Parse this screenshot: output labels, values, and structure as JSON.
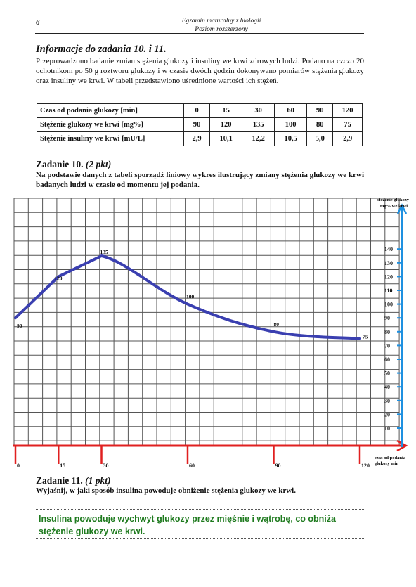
{
  "header": {
    "page_number": "6",
    "running_title_1": "Egzamin maturalny z biologii",
    "running_title_2": "Poziom rozszerzony"
  },
  "info": {
    "title": "Informacje do zadania 10. i 11.",
    "text": "Przeprowadzono badanie zmian stężenia glukozy i insuliny we krwi zdrowych ludzi. Podano na czczo 20 ochotnikom po 50 g roztworu glukozy i w czasie dwóch godzin dokonywano pomiarów stężenia glukozy oraz insuliny we krwi. W tabeli przedstawiono uśrednione wartości ich stężeń."
  },
  "table": {
    "rows": [
      {
        "label": "Czas od podania glukozy [min]",
        "values": [
          "0",
          "15",
          "30",
          "60",
          "90",
          "120"
        ]
      },
      {
        "label": "Stężenie glukozy we krwi [mg%]",
        "values": [
          "90",
          "120",
          "135",
          "100",
          "80",
          "75"
        ]
      },
      {
        "label": "Stężenie insuliny we krwi [mU/L]",
        "values": [
          "2,9",
          "10,1",
          "12,2",
          "10,5",
          "5,0",
          "2,9"
        ]
      }
    ]
  },
  "task10": {
    "title_main": "Zadanie 10.",
    "title_points": "(2 pkt)",
    "text": "Na podstawie danych z tabeli sporządź liniowy wykres ilustrujący zmiany stężenia glukozy we krwi badanych ludzi w czasie od momentu jej podania."
  },
  "task11": {
    "title_main": "Zadanie 11.",
    "title_points": "(1 pkt)",
    "text": "Wyjaśnij, w jaki sposób insulina powoduje obniżenie stężenia glukozy we krwi.",
    "answer": "Insulina powoduje wychwyt glukozy przez mięśnie i wątrobę, co obniża stężenie glukozy we krwi."
  },
  "chart_data": {
    "type": "line",
    "ylabel_line1": "stężenie glukozy",
    "ylabel_line2": "mg% we krwi",
    "xlabel_line1": "czas od podania",
    "xlabel_line2": "glukozy   min",
    "x": [
      0,
      15,
      30,
      60,
      90,
      120
    ],
    "y": [
      90,
      120,
      135,
      100,
      80,
      75
    ],
    "point_labels": [
      "90",
      "120",
      "135",
      "100",
      "80",
      "75"
    ],
    "x_ticks": [
      "0",
      "15",
      "30",
      "60",
      "90",
      "120"
    ],
    "y_ticks": [
      "10",
      "20",
      "30",
      "40",
      "50",
      "60",
      "70",
      "80",
      "90",
      "100",
      "110",
      "120",
      "130",
      "140"
    ],
    "xlim": [
      0,
      120
    ],
    "ylim": [
      0,
      140
    ],
    "grid": true,
    "colors": {
      "line": "#3a3fb0",
      "x_axis": "#e02020",
      "y_axis": "#1e90e0"
    }
  }
}
